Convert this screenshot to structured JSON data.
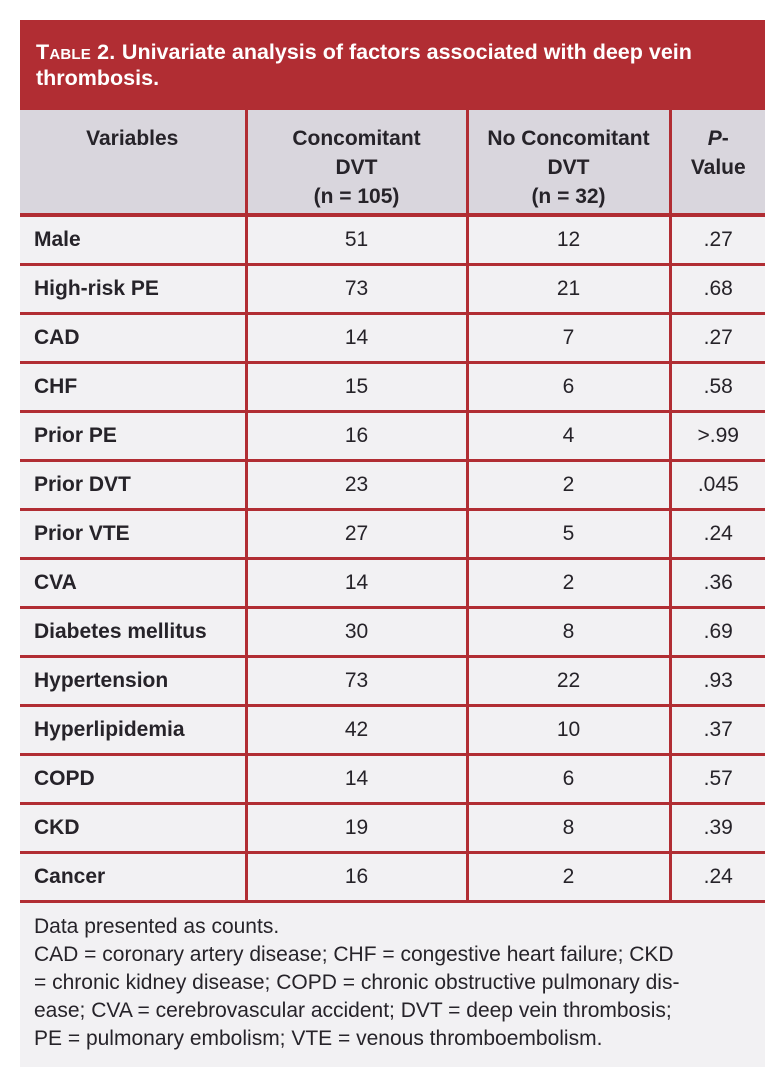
{
  "banner": {
    "label": "Table 2.",
    "title": "Univariate analysis of factors associated with deep vein thrombosis."
  },
  "table": {
    "headers": {
      "variables": "Variables",
      "col2_lines": [
        "Concomitant",
        "DVT",
        "(n = 105)"
      ],
      "col3_lines": [
        "No Concomitant",
        "DVT",
        "(n = 32)"
      ],
      "col4": {
        "italic": "P",
        "dash": "-",
        "line2": "Value"
      }
    },
    "rows": [
      {
        "variable": "Male",
        "concomitant": "51",
        "no_concomitant": "12",
        "p_value": ".27"
      },
      {
        "variable": "High-risk PE",
        "concomitant": "73",
        "no_concomitant": "21",
        "p_value": ".68"
      },
      {
        "variable": "CAD",
        "concomitant": "14",
        "no_concomitant": "7",
        "p_value": ".27"
      },
      {
        "variable": "CHF",
        "concomitant": "15",
        "no_concomitant": "6",
        "p_value": ".58"
      },
      {
        "variable": "Prior PE",
        "concomitant": "16",
        "no_concomitant": "4",
        "p_value": ">.99"
      },
      {
        "variable": "Prior DVT",
        "concomitant": "23",
        "no_concomitant": "2",
        "p_value": ".045"
      },
      {
        "variable": "Prior VTE",
        "concomitant": "27",
        "no_concomitant": "5",
        "p_value": ".24"
      },
      {
        "variable": "CVA",
        "concomitant": "14",
        "no_concomitant": "2",
        "p_value": ".36"
      },
      {
        "variable": "Diabetes mellitus",
        "concomitant": "30",
        "no_concomitant": "8",
        "p_value": ".69"
      },
      {
        "variable": "Hypertension",
        "concomitant": "73",
        "no_concomitant": "22",
        "p_value": ".93"
      },
      {
        "variable": "Hyperlipidemia",
        "concomitant": "42",
        "no_concomitant": "10",
        "p_value": ".37"
      },
      {
        "variable": "COPD",
        "concomitant": "14",
        "no_concomitant": "6",
        "p_value": ".57"
      },
      {
        "variable": "CKD",
        "concomitant": "19",
        "no_concomitant": "8",
        "p_value": ".39"
      },
      {
        "variable": "Cancer",
        "concomitant": "16",
        "no_concomitant": "2",
        "p_value": ".24"
      }
    ]
  },
  "footnotes": {
    "lines": [
      "Data presented as counts.",
      "CAD = coronary artery disease; CHF = congestive heart failure; CKD",
      "= chronic kidney disease; COPD = chronic obstructive pulmonary dis-",
      "ease; CVA = cerebrovascular accident; DVT = deep vein thrombosis;",
      "PE = pulmonary embolism; VTE = venous thromboembolism."
    ]
  },
  "colors": {
    "accent_red": "#b12d33",
    "header_bg": "#d9d6dd",
    "row_bg": "#f2f1f3",
    "text": "#262329",
    "banner_text": "#ffffff"
  }
}
